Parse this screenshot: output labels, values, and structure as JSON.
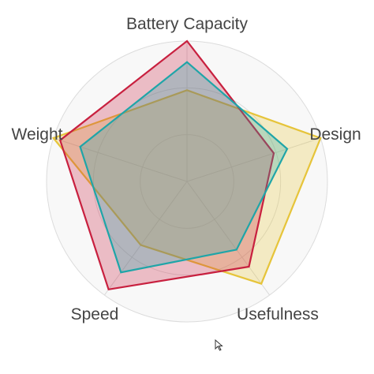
{
  "chart_data": {
    "type": "radar",
    "axes": [
      "Battery Capacity",
      "Design",
      "Usefulness",
      "Speed",
      "Weight"
    ],
    "range": [
      0,
      100
    ],
    "grid": true,
    "series": [
      {
        "values": [
          65,
          100,
          90,
          56,
          100
        ],
        "color": "#e6c43a"
      },
      {
        "values": [
          100,
          65,
          75,
          95,
          95
        ],
        "color": "#c8203f"
      },
      {
        "values": [
          85,
          75,
          60,
          80,
          80
        ],
        "color": "#1fa5a8"
      }
    ]
  },
  "icons": {
    "cursor": "mouse-pointer-icon"
  }
}
